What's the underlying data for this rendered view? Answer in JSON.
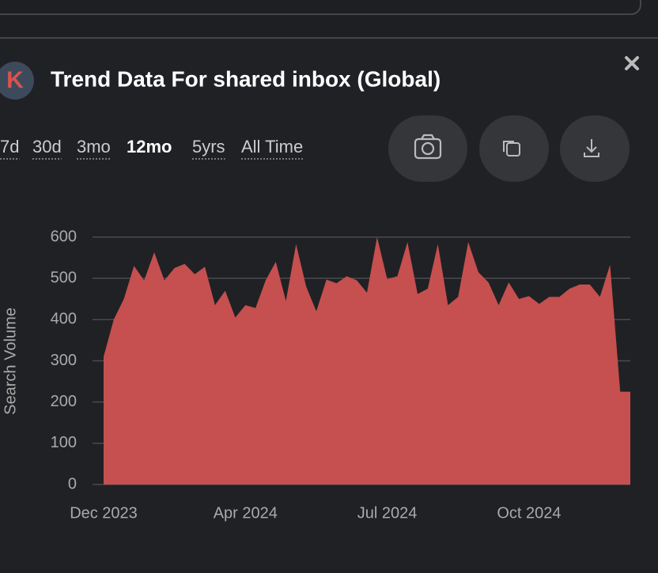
{
  "header": {
    "avatar_letter": "K",
    "title": "Trend Data For shared inbox (Global)"
  },
  "ranges": [
    "7d",
    "30d",
    "3mo",
    "12mo",
    "5yrs",
    "All Time"
  ],
  "active_range": "12mo",
  "chart_data": {
    "type": "area",
    "color": "#c5504f",
    "y_label": "Search Volume",
    "categories": [
      "Dec 2023",
      null,
      null,
      null,
      null,
      null,
      null,
      null,
      null,
      null,
      null,
      null,
      null,
      null,
      "Apr 2024",
      null,
      null,
      null,
      null,
      null,
      null,
      null,
      null,
      null,
      null,
      null,
      null,
      null,
      "Jul 2024",
      null,
      null,
      null,
      null,
      null,
      null,
      null,
      null,
      null,
      null,
      null,
      null,
      null,
      "Oct 2024",
      null,
      null,
      null,
      null,
      null,
      null,
      null,
      null,
      null,
      null
    ],
    "values": [
      310,
      400,
      450,
      530,
      495,
      563,
      495,
      525,
      535,
      510,
      528,
      435,
      470,
      405,
      435,
      428,
      495,
      540,
      445,
      583,
      480,
      420,
      497,
      488,
      505,
      495,
      465,
      600,
      498,
      505,
      588,
      462,
      475,
      583,
      435,
      455,
      588,
      515,
      490,
      435,
      490,
      450,
      457,
      438,
      455,
      455,
      475,
      485,
      485,
      455,
      533,
      225,
      225
    ],
    "ylim": [
      0,
      600
    ],
    "yticks": [
      0,
      100,
      200,
      300,
      400,
      500,
      600
    ],
    "grid": true
  }
}
